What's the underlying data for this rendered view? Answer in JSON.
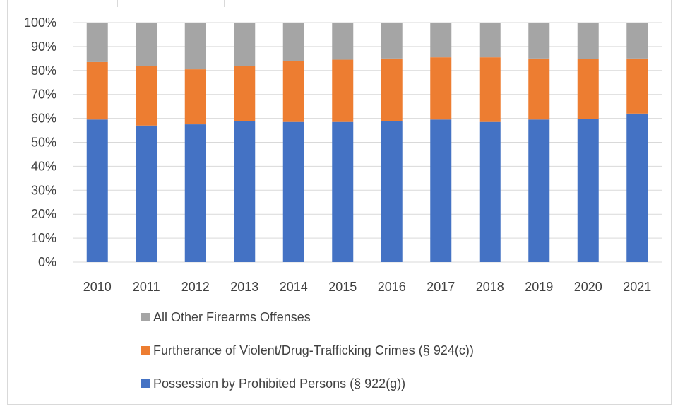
{
  "chart_data": {
    "type": "bar",
    "stacked": true,
    "percent": true,
    "categories": [
      "2010",
      "2011",
      "2012",
      "2013",
      "2014",
      "2015",
      "2016",
      "2017",
      "2018",
      "2019",
      "2020",
      "2021"
    ],
    "series": [
      {
        "name": "Possession by Prohibited Persons (§ 922(g))",
        "color": "#4472c4",
        "values": [
          59.5,
          57.0,
          57.5,
          59.0,
          58.5,
          58.5,
          59.0,
          59.5,
          58.5,
          59.5,
          59.8,
          62.0
        ]
      },
      {
        "name": "Furtherance of Violent/Drug-Trafficking Crimes (§ 924(c))",
        "color": "#ed7d31",
        "values": [
          24.0,
          25.0,
          23.0,
          22.8,
          25.5,
          26.0,
          26.0,
          26.0,
          27.0,
          25.5,
          25.0,
          23.0
        ]
      },
      {
        "name": "All Other Firearms Offenses",
        "color": "#a5a5a5",
        "values": [
          16.5,
          18.0,
          19.5,
          18.2,
          16.0,
          15.5,
          15.0,
          14.5,
          14.5,
          15.0,
          15.2,
          15.0
        ]
      }
    ],
    "yticks": [
      "0%",
      "10%",
      "20%",
      "30%",
      "40%",
      "50%",
      "60%",
      "70%",
      "80%",
      "90%",
      "100%"
    ],
    "ylim": [
      0,
      100
    ],
    "grid": true,
    "legend_position": "bottom",
    "legend_order": [
      2,
      1,
      0
    ],
    "title": "",
    "xlabel": "",
    "ylabel": ""
  }
}
